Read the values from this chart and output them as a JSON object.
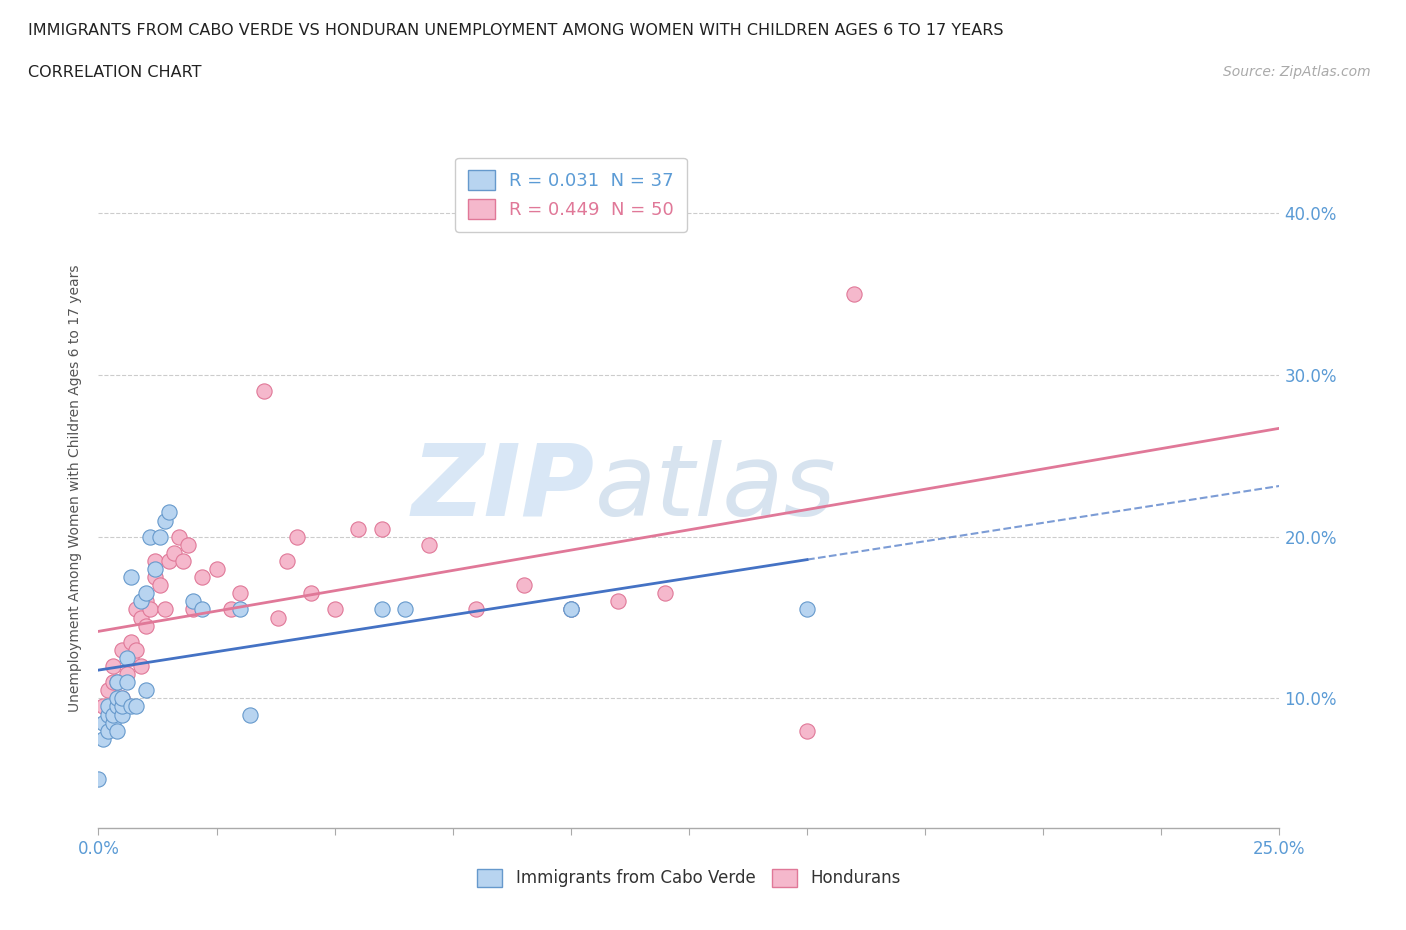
{
  "title_line1": "IMMIGRANTS FROM CABO VERDE VS HONDURAN UNEMPLOYMENT AMONG WOMEN WITH CHILDREN AGES 6 TO 17 YEARS",
  "title_line2": "CORRELATION CHART",
  "source": "Source: ZipAtlas.com",
  "ylabel": "Unemployment Among Women with Children Ages 6 to 17 years",
  "xlim": [
    0.0,
    0.25
  ],
  "ylim": [
    0.02,
    0.44
  ],
  "xticks": [
    0.0,
    0.025,
    0.05,
    0.075,
    0.1,
    0.125,
    0.15,
    0.175,
    0.2,
    0.225,
    0.25
  ],
  "yticks": [
    0.1,
    0.2,
    0.3,
    0.4
  ],
  "ytick_labels": [
    "10.0%",
    "20.0%",
    "30.0%",
    "40.0%"
  ],
  "xtick_left_label": "0.0%",
  "xtick_right_label": "25.0%",
  "series1_name": "Immigrants from Cabo Verde",
  "series1_color": "#b8d4f0",
  "series1_edge_color": "#6699cc",
  "series1_R": 0.031,
  "series1_N": 37,
  "series1_line_color": "#4472c4",
  "series2_name": "Hondurans",
  "series2_color": "#f5b8cc",
  "series2_edge_color": "#e07898",
  "series2_R": 0.449,
  "series2_N": 50,
  "series2_line_color": "#e07898",
  "watermark_text": "ZIP",
  "watermark_text2": "atlas",
  "cabo_verde_x": [
    0.0,
    0.001,
    0.001,
    0.002,
    0.002,
    0.002,
    0.003,
    0.003,
    0.004,
    0.004,
    0.004,
    0.004,
    0.005,
    0.005,
    0.005,
    0.006,
    0.006,
    0.007,
    0.007,
    0.008,
    0.009,
    0.01,
    0.01,
    0.011,
    0.012,
    0.013,
    0.014,
    0.015,
    0.02,
    0.022,
    0.03,
    0.032,
    0.06,
    0.065,
    0.1,
    0.1,
    0.15
  ],
  "cabo_verde_y": [
    0.05,
    0.075,
    0.085,
    0.08,
    0.09,
    0.095,
    0.085,
    0.09,
    0.08,
    0.095,
    0.1,
    0.11,
    0.09,
    0.095,
    0.1,
    0.11,
    0.125,
    0.095,
    0.175,
    0.095,
    0.16,
    0.105,
    0.165,
    0.2,
    0.18,
    0.2,
    0.21,
    0.215,
    0.16,
    0.155,
    0.155,
    0.09,
    0.155,
    0.155,
    0.155,
    0.155,
    0.155
  ],
  "honduran_x": [
    0.001,
    0.002,
    0.002,
    0.003,
    0.003,
    0.004,
    0.004,
    0.005,
    0.005,
    0.006,
    0.006,
    0.007,
    0.007,
    0.008,
    0.008,
    0.009,
    0.009,
    0.01,
    0.01,
    0.011,
    0.012,
    0.012,
    0.013,
    0.014,
    0.015,
    0.016,
    0.017,
    0.018,
    0.019,
    0.02,
    0.022,
    0.025,
    0.028,
    0.03,
    0.035,
    0.038,
    0.04,
    0.042,
    0.045,
    0.05,
    0.055,
    0.06,
    0.07,
    0.08,
    0.09,
    0.1,
    0.11,
    0.12,
    0.15,
    0.16
  ],
  "honduran_y": [
    0.095,
    0.085,
    0.105,
    0.11,
    0.12,
    0.095,
    0.11,
    0.1,
    0.13,
    0.095,
    0.115,
    0.125,
    0.135,
    0.13,
    0.155,
    0.12,
    0.15,
    0.145,
    0.16,
    0.155,
    0.175,
    0.185,
    0.17,
    0.155,
    0.185,
    0.19,
    0.2,
    0.185,
    0.195,
    0.155,
    0.175,
    0.18,
    0.155,
    0.165,
    0.29,
    0.15,
    0.185,
    0.2,
    0.165,
    0.155,
    0.205,
    0.205,
    0.195,
    0.155,
    0.17,
    0.155,
    0.16,
    0.165,
    0.08,
    0.35
  ]
}
